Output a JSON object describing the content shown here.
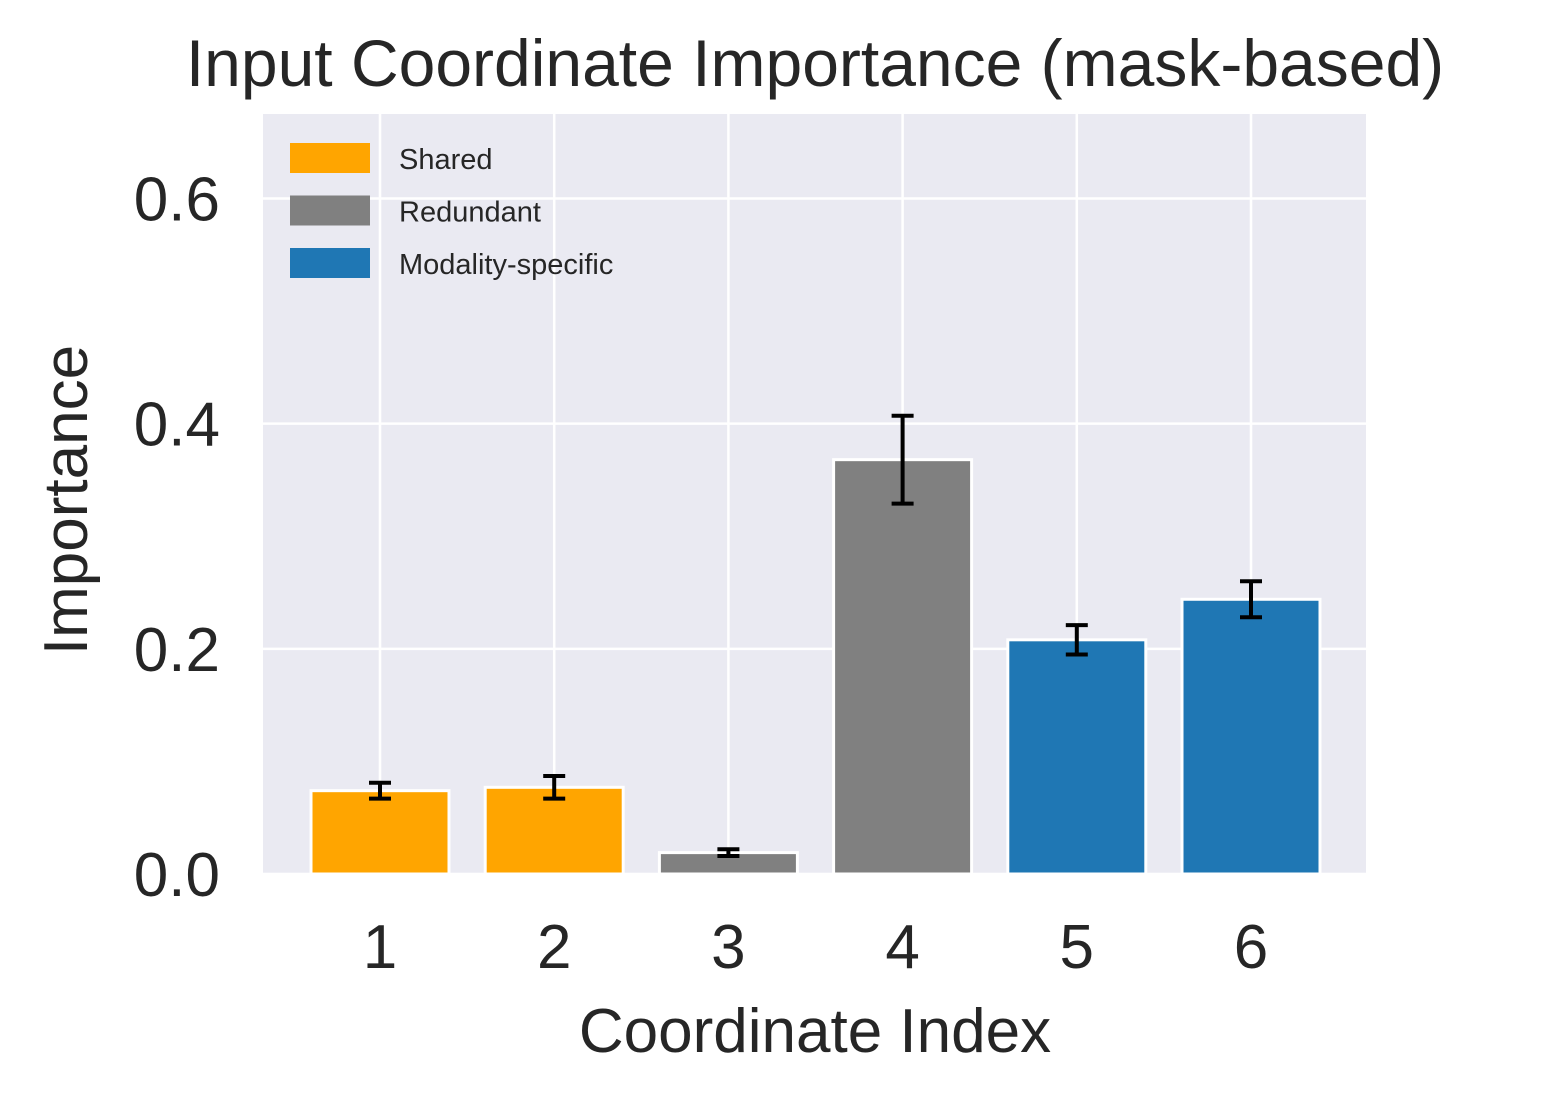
{
  "chart_data": {
    "type": "bar",
    "title": "Input Coordinate Importance (mask-based)",
    "xlabel": "Coordinate Index",
    "ylabel": "Importance",
    "categories": [
      "1",
      "2",
      "3",
      "4",
      "5",
      "6"
    ],
    "values": [
      0.074,
      0.077,
      0.019,
      0.368,
      0.208,
      0.244
    ],
    "errors": [
      0.007,
      0.01,
      0.003,
      0.039,
      0.013,
      0.016
    ],
    "bar_groups": [
      "Shared",
      "Shared",
      "Redundant",
      "Redundant",
      "Modality-specific",
      "Modality-specific"
    ],
    "legend": [
      {
        "label": "Shared",
        "color": "#FFA500"
      },
      {
        "label": "Redundant",
        "color": "#808080"
      },
      {
        "label": "Modality-specific",
        "color": "#1F77B4"
      }
    ],
    "legend_position": "upper-left",
    "ylim": [
      0,
      0.675
    ],
    "yticks": [
      0.0,
      0.2,
      0.4,
      0.6
    ],
    "ytick_labels": [
      "0.0",
      "0.2",
      "0.4",
      "0.6"
    ],
    "grid": true,
    "style": "seaborn-darkgrid",
    "colors": {
      "plot_background": "#EAEAF2",
      "grid": "#FFFFFF",
      "text": "#262626",
      "error_bar": "#000000",
      "bar_edge": "#FFFFFF"
    }
  }
}
